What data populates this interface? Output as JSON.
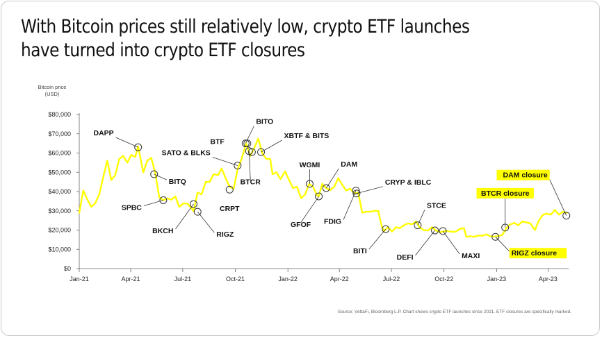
{
  "title_lines": [
    "With Bitcoin prices still relatively low, crypto ETF launches",
    "have turned into crypto ETF closures"
  ],
  "source": "Source: VettaFi, Bloomberg L.P. Chart shows crypto ETF launches since 2021. ETF closures are specifically marked.",
  "colors": {
    "line": "#ffff00",
    "highlight": "#ffff00",
    "text": "#111111",
    "axis": "#444444"
  },
  "chart_data": {
    "type": "line",
    "ylabel_lines": [
      "Bitcoin price",
      "(USD)"
    ],
    "ylim": [
      0,
      80000
    ],
    "yticks": [
      {
        "value": 0,
        "label": "$0"
      },
      {
        "value": 10000,
        "label": "$10,000"
      },
      {
        "value": 20000,
        "label": "$20,000"
      },
      {
        "value": 30000,
        "label": "$30,000"
      },
      {
        "value": 40000,
        "label": "$40,000"
      },
      {
        "value": 50000,
        "label": "$50,000"
      },
      {
        "value": 60000,
        "label": "$60,000"
      },
      {
        "value": 70000,
        "label": "$70,000"
      },
      {
        "value": 80000,
        "label": "$80,000"
      }
    ],
    "xticks": [
      {
        "date": "2021-01-01",
        "label": "Jan-21"
      },
      {
        "date": "2021-04-01",
        "label": "Apr-21"
      },
      {
        "date": "2021-07-01",
        "label": "Jul-21"
      },
      {
        "date": "2021-10-01",
        "label": "Oct-21"
      },
      {
        "date": "2022-01-01",
        "label": "Jan-22"
      },
      {
        "date": "2022-04-01",
        "label": "Apr-22"
      },
      {
        "date": "2022-07-01",
        "label": "Jul-22"
      },
      {
        "date": "2022-10-01",
        "label": "Oct-22"
      },
      {
        "date": "2023-01-01",
        "label": "Jan-23"
      },
      {
        "date": "2023-04-01",
        "label": "Apr-23"
      }
    ],
    "xlim": [
      "2021-01-01",
      "2023-05-07"
    ],
    "series": [
      {
        "points": [
          [
            "2021-01-01",
            29000
          ],
          [
            "2021-01-08",
            40500
          ],
          [
            "2021-01-15",
            36000
          ],
          [
            "2021-01-22",
            32000
          ],
          [
            "2021-01-29",
            34000
          ],
          [
            "2021-02-05",
            38500
          ],
          [
            "2021-02-12",
            47500
          ],
          [
            "2021-02-19",
            56000
          ],
          [
            "2021-02-26",
            46000
          ],
          [
            "2021-03-05",
            48500
          ],
          [
            "2021-03-12",
            57000
          ],
          [
            "2021-03-19",
            58500
          ],
          [
            "2021-03-26",
            55000
          ],
          [
            "2021-04-02",
            59000
          ],
          [
            "2021-04-09",
            58000
          ],
          [
            "2021-04-14",
            63500
          ],
          [
            "2021-04-23",
            50000
          ],
          [
            "2021-04-30",
            56000
          ],
          [
            "2021-05-07",
            57500
          ],
          [
            "2021-05-14",
            49500
          ],
          [
            "2021-05-21",
            37000
          ],
          [
            "2021-05-28",
            35500
          ],
          [
            "2021-06-04",
            36500
          ],
          [
            "2021-06-11",
            35800
          ],
          [
            "2021-06-18",
            37500
          ],
          [
            "2021-06-25",
            32000
          ],
          [
            "2021-07-02",
            33800
          ],
          [
            "2021-07-09",
            33800
          ],
          [
            "2021-07-16",
            31500
          ],
          [
            "2021-07-20",
            29800
          ],
          [
            "2021-07-27",
            39500
          ],
          [
            "2021-08-03",
            38500
          ],
          [
            "2021-08-10",
            45000
          ],
          [
            "2021-08-17",
            45000
          ],
          [
            "2021-08-24",
            49000
          ],
          [
            "2021-09-01",
            48500
          ],
          [
            "2021-09-07",
            52000
          ],
          [
            "2021-09-14",
            47000
          ],
          [
            "2021-09-21",
            42500
          ],
          [
            "2021-09-28",
            41500
          ],
          [
            "2021-10-05",
            51500
          ],
          [
            "2021-10-12",
            57000
          ],
          [
            "2021-10-20",
            65000
          ],
          [
            "2021-10-27",
            58500
          ],
          [
            "2021-11-03",
            62500
          ],
          [
            "2021-11-10",
            67500
          ],
          [
            "2021-11-17",
            60000
          ],
          [
            "2021-11-24",
            57000
          ],
          [
            "2021-12-01",
            57000
          ],
          [
            "2021-12-05",
            49000
          ],
          [
            "2021-12-12",
            50000
          ],
          [
            "2021-12-19",
            46500
          ],
          [
            "2021-12-27",
            50500
          ],
          [
            "2022-01-03",
            46000
          ],
          [
            "2022-01-10",
            41800
          ],
          [
            "2022-01-17",
            42500
          ],
          [
            "2022-01-24",
            36500
          ],
          [
            "2022-01-31",
            38500
          ],
          [
            "2022-02-07",
            44000
          ],
          [
            "2022-02-14",
            42500
          ],
          [
            "2022-02-21",
            38000
          ],
          [
            "2022-02-24",
            37500
          ],
          [
            "2022-03-02",
            44000
          ],
          [
            "2022-03-09",
            41800
          ],
          [
            "2022-03-16",
            40800
          ],
          [
            "2022-03-23",
            42500
          ],
          [
            "2022-03-30",
            47000
          ],
          [
            "2022-04-06",
            43500
          ],
          [
            "2022-04-13",
            40500
          ],
          [
            "2022-04-20",
            41500
          ],
          [
            "2022-04-27",
            39000
          ],
          [
            "2022-05-04",
            39500
          ],
          [
            "2022-05-11",
            29000
          ],
          [
            "2022-05-18",
            29500
          ],
          [
            "2022-05-25",
            29500
          ],
          [
            "2022-06-01",
            30000
          ],
          [
            "2022-06-08",
            30000
          ],
          [
            "2022-06-14",
            22000
          ],
          [
            "2022-06-18",
            19500
          ],
          [
            "2022-06-25",
            21500
          ],
          [
            "2022-07-02",
            19200
          ],
          [
            "2022-07-09",
            21500
          ],
          [
            "2022-07-16",
            21000
          ],
          [
            "2022-07-23",
            22500
          ],
          [
            "2022-07-30",
            23500
          ],
          [
            "2022-08-06",
            23000
          ],
          [
            "2022-08-13",
            24500
          ],
          [
            "2022-08-20",
            21200
          ],
          [
            "2022-08-27",
            20000
          ],
          [
            "2022-09-03",
            19800
          ],
          [
            "2022-09-10",
            21500
          ],
          [
            "2022-09-17",
            19800
          ],
          [
            "2022-09-24",
            18900
          ],
          [
            "2022-10-01",
            19400
          ],
          [
            "2022-10-08",
            19500
          ],
          [
            "2022-10-15",
            19100
          ],
          [
            "2022-10-22",
            19200
          ],
          [
            "2022-10-29",
            20700
          ],
          [
            "2022-11-05",
            21000
          ],
          [
            "2022-11-09",
            16500
          ],
          [
            "2022-11-16",
            16800
          ],
          [
            "2022-11-23",
            16500
          ],
          [
            "2022-11-30",
            17200
          ],
          [
            "2022-12-07",
            17000
          ],
          [
            "2022-12-14",
            17800
          ],
          [
            "2022-12-21",
            16800
          ],
          [
            "2022-12-28",
            16600
          ],
          [
            "2023-01-04",
            16900
          ],
          [
            "2023-01-11",
            17500
          ],
          [
            "2023-01-18",
            21000
          ],
          [
            "2023-01-25",
            23000
          ],
          [
            "2023-02-01",
            23700
          ],
          [
            "2023-02-08",
            22500
          ],
          [
            "2023-02-15",
            24500
          ],
          [
            "2023-02-22",
            24000
          ],
          [
            "2023-03-01",
            23500
          ],
          [
            "2023-03-09",
            20000
          ],
          [
            "2023-03-16",
            25000
          ],
          [
            "2023-03-23",
            28000
          ],
          [
            "2023-03-30",
            28500
          ],
          [
            "2023-04-06",
            28000
          ],
          [
            "2023-04-13",
            30500
          ],
          [
            "2023-04-20",
            28000
          ],
          [
            "2023-04-27",
            29500
          ],
          [
            "2023-05-04",
            29000
          ]
        ]
      }
    ],
    "annotations": [
      {
        "label": "DAPP",
        "date": "2021-04-14",
        "value": 63000,
        "kind": "launch",
        "dx": -32,
        "dy": -14,
        "anchor": "end",
        "leader": true
      },
      {
        "label": "BITQ",
        "date": "2021-05-12",
        "value": 49000,
        "kind": "launch",
        "dx": 18,
        "dy": 8,
        "anchor": "start",
        "leader": true
      },
      {
        "label": "SPBC",
        "date": "2021-05-28",
        "value": 35500,
        "kind": "launch",
        "dx": -28,
        "dy": 8,
        "anchor": "end",
        "leader": true
      },
      {
        "label": "BKCH",
        "date": "2021-07-20",
        "value": 33500,
        "kind": "launch",
        "dx": -26,
        "dy": 36,
        "anchor": "end",
        "leader": true
      },
      {
        "label": "RIGZ",
        "date": "2021-07-27",
        "value": 29500,
        "kind": "launch",
        "dx": 24,
        "dy": 30,
        "anchor": "start",
        "leader": true
      },
      {
        "label": "CRPT",
        "date": "2021-09-21",
        "value": 41000,
        "kind": "launch",
        "dx": 0,
        "dy": 25,
        "anchor": "middle",
        "leader": false
      },
      {
        "label": "SATO & BLKS",
        "date": "2021-10-05",
        "value": 53500,
        "kind": "launch",
        "dx": -36,
        "dy": -12,
        "anchor": "end",
        "leader": true
      },
      {
        "label": "BTF",
        "date": "2021-10-22",
        "value": 65000,
        "kind": "launch",
        "dx": -30,
        "dy": -2,
        "anchor": "end",
        "leader": false
      },
      {
        "label": "BITO",
        "date": "2021-10-19",
        "value": 65000,
        "kind": "launch",
        "dx": 12,
        "dy": -25,
        "anchor": "start",
        "leader": true
      },
      {
        "label": "BTCR",
        "date": "2021-10-25",
        "value": 61000,
        "kind": "launch",
        "dx": 2,
        "dy": 42,
        "anchor": "middle",
        "leader": true
      },
      {
        "label": "BTCR",
        "date": "2021-10-30",
        "value": 60500,
        "kind": "launch",
        "dx": 0,
        "dy": 0,
        "anchor": "middle",
        "leader": false,
        "hidden_label": true
      },
      {
        "label": "XBTF & BITS",
        "date": "2021-11-15",
        "value": 60500,
        "kind": "launch",
        "dx": 30,
        "dy": -17,
        "anchor": "start",
        "leader": true
      },
      {
        "label": "WGMI",
        "date": "2022-02-08",
        "value": 44000,
        "kind": "launch",
        "dx": 0,
        "dy": -21,
        "anchor": "middle",
        "leader": true
      },
      {
        "label": "GFOF",
        "date": "2022-02-24",
        "value": 37500,
        "kind": "launch",
        "dx": -26,
        "dy": 38,
        "anchor": "middle",
        "leader": true
      },
      {
        "label": "DAM",
        "date": "2022-03-09",
        "value": 41800,
        "kind": "launch",
        "dx": 18,
        "dy": -28,
        "anchor": "start",
        "leader": true
      },
      {
        "label": "FDIG",
        "date": "2022-04-30",
        "value": 40500,
        "kind": "launch",
        "dx": -18,
        "dy": 42,
        "anchor": "end",
        "leader": true
      },
      {
        "label": "CRYP & IBLC",
        "date": "2022-05-01",
        "value": 39000,
        "kind": "launch",
        "dx": 38,
        "dy": -10,
        "anchor": "start",
        "leader": true
      },
      {
        "label": "BITI",
        "date": "2022-06-21",
        "value": 20500,
        "kind": "launch",
        "dx": -24,
        "dy": 29,
        "anchor": "end",
        "leader": true
      },
      {
        "label": "STCE",
        "date": "2022-08-16",
        "value": 22500,
        "kind": "launch",
        "dx": 10,
        "dy": -22,
        "anchor": "start",
        "leader": true
      },
      {
        "label": "DEFI",
        "date": "2022-09-15",
        "value": 19800,
        "kind": "launch",
        "dx": -28,
        "dy": 36,
        "anchor": "end",
        "leader": true
      },
      {
        "label": "MAXI",
        "date": "2022-09-29",
        "value": 19500,
        "kind": "launch",
        "dx": 24,
        "dy": 33,
        "anchor": "start",
        "leader": true
      },
      {
        "label": "RIGZ closure",
        "date": "2022-12-30",
        "value": 16500,
        "kind": "closure",
        "dx": 20,
        "dy": 21,
        "anchor": "start",
        "leader": true
      },
      {
        "label": "BTCR closure",
        "date": "2023-01-16",
        "value": 21300,
        "kind": "closure",
        "dx": 0,
        "dy": -43,
        "anchor": "middle",
        "leader": true
      },
      {
        "label": "DAM closure",
        "date": "2023-05-03",
        "value": 27500,
        "kind": "closure",
        "dx": -24,
        "dy": -52,
        "anchor": "end",
        "leader": true
      }
    ]
  }
}
